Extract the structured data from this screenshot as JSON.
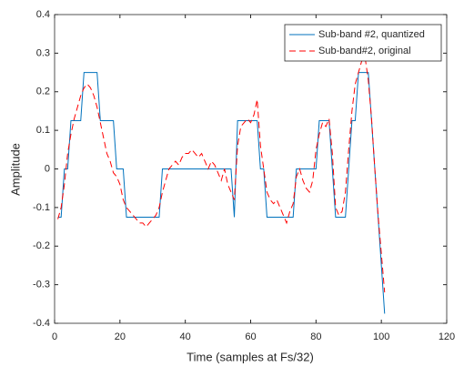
{
  "chart_data": {
    "type": "line",
    "xlabel": "Time (samples at Fs/32)",
    "ylabel": "Amplitude",
    "x": [
      1,
      2,
      3,
      4,
      5,
      6,
      7,
      8,
      9,
      10,
      11,
      12,
      13,
      14,
      15,
      16,
      17,
      18,
      19,
      20,
      21,
      22,
      23,
      24,
      25,
      26,
      27,
      28,
      29,
      30,
      31,
      32,
      33,
      34,
      35,
      36,
      37,
      38,
      39,
      40,
      41,
      42,
      43,
      44,
      45,
      46,
      47,
      48,
      49,
      50,
      51,
      52,
      53,
      54,
      55,
      56,
      57,
      58,
      59,
      60,
      61,
      62,
      63,
      64,
      65,
      66,
      67,
      68,
      69,
      70,
      71,
      72,
      73,
      74,
      75,
      76,
      77,
      78,
      79,
      80,
      81,
      82,
      83,
      84,
      85,
      86,
      87,
      88,
      89,
      90,
      91,
      92,
      93,
      94,
      95,
      96,
      97,
      98,
      99,
      100,
      101
    ],
    "series": [
      {
        "name": "Sub-band #2, quantized",
        "color": "#0072bd",
        "linestyle": "solid",
        "values": [
          -0.125,
          -0.125,
          0,
          0,
          0.125,
          0.125,
          0.125,
          0.125,
          0.25,
          0.25,
          0.25,
          0.25,
          0.25,
          0.125,
          0.125,
          0.125,
          0.125,
          0.125,
          0,
          0,
          0,
          -0.125,
          -0.125,
          -0.125,
          -0.125,
          -0.125,
          -0.125,
          -0.125,
          -0.125,
          -0.125,
          -0.125,
          -0.125,
          0,
          0,
          0,
          0,
          0,
          0,
          0,
          0,
          0,
          0,
          0,
          0,
          0,
          0,
          0,
          0,
          0,
          0,
          0,
          0,
          0,
          0,
          -0.125,
          0.125,
          0.125,
          0.125,
          0.125,
          0.125,
          0.125,
          0.125,
          0,
          0,
          -0.125,
          -0.125,
          -0.125,
          -0.125,
          -0.125,
          -0.125,
          -0.125,
          -0.125,
          -0.125,
          0,
          0,
          0,
          0,
          0,
          0,
          0,
          0.125,
          0.125,
          0.125,
          0.125,
          0,
          -0.125,
          -0.125,
          -0.125,
          -0.125,
          0,
          0.125,
          0.125,
          0.25,
          0.25,
          0.25,
          0.25,
          0.125,
          0,
          -0.125,
          -0.25,
          -0.375
        ]
      },
      {
        "name": "Sub-band#2, original",
        "color": "#ff0000",
        "linestyle": "dashed",
        "values": [
          -0.13,
          -0.1,
          -0.04,
          0.04,
          0.09,
          0.13,
          0.16,
          0.19,
          0.21,
          0.22,
          0.21,
          0.19,
          0.16,
          0.12,
          0.08,
          0.04,
          0.02,
          -0.01,
          -0.02,
          -0.04,
          -0.08,
          -0.1,
          -0.11,
          -0.12,
          -0.13,
          -0.14,
          -0.14,
          -0.15,
          -0.14,
          -0.13,
          -0.12,
          -0.1,
          -0.06,
          -0.03,
          0,
          0.01,
          0.02,
          0.01,
          0.03,
          0.04,
          0.04,
          0.05,
          0.04,
          0.03,
          0.04,
          0.02,
          0,
          0.02,
          0.01,
          -0.01,
          -0.03,
          0,
          -0.04,
          -0.06,
          -0.08,
          0.06,
          0.11,
          0.12,
          0.13,
          0.12,
          0.14,
          0.18,
          0.06,
          0,
          -0.06,
          -0.08,
          -0.09,
          -0.08,
          -0.1,
          -0.12,
          -0.14,
          -0.11,
          -0.09,
          -0.02,
          0,
          -0.03,
          -0.05,
          -0.06,
          -0.03,
          0.05,
          0.09,
          0.12,
          0.11,
          0.13,
          0.04,
          -0.1,
          -0.12,
          -0.11,
          -0.06,
          0.05,
          0.15,
          0.22,
          0.25,
          0.28,
          0.29,
          0.23,
          0.13,
          0,
          -0.12,
          -0.22,
          -0.32
        ]
      }
    ],
    "xlim": [
      0,
      120
    ],
    "xticks": [
      0,
      20,
      40,
      60,
      80,
      100,
      120
    ],
    "ylim": [
      -0.4,
      0.4
    ],
    "yticks": [
      -0.4,
      -0.3,
      -0.2,
      -0.1,
      0,
      0.1,
      0.2,
      0.3,
      0.4
    ],
    "grid": false,
    "legend": "northeast"
  }
}
